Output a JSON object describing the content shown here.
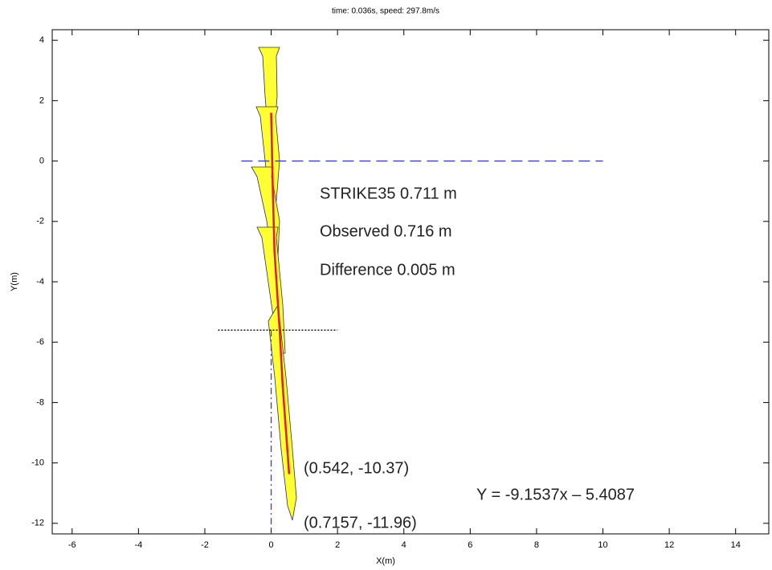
{
  "chart_data": {
    "type": "line",
    "title": "time:  0.036s,  speed:  297.8m/s",
    "x_label": "X(m)",
    "y_label": "Y(m)",
    "xlim": [
      -6.6,
      15
    ],
    "ylim": [
      -12.35,
      4.35
    ],
    "xticks": [
      -6,
      -4,
      -2,
      0,
      2,
      4,
      6,
      8,
      10,
      12,
      14
    ],
    "yticks": [
      -12,
      -10,
      -8,
      -6,
      -4,
      -2,
      0,
      2,
      4
    ],
    "lines": [
      {
        "x": [
          -0.9,
          10
        ],
        "y": [
          0,
          0
        ],
        "color": "#3b3bc8",
        "style": "dashed"
      },
      {
        "x": [
          -1.6,
          2
        ],
        "y": [
          -5.6,
          -5.6
        ],
        "color": "#000000",
        "style": "dotted"
      },
      {
        "x": [
          0,
          0
        ],
        "y": [
          -5.6,
          -12.35
        ],
        "color": "#3b3bc8",
        "style": "dashdot"
      },
      {
        "x": [
          0,
          0.05,
          0.1,
          0.25,
          0.35,
          0.45,
          0.542
        ],
        "y": [
          1.6,
          -1,
          -3,
          -5.5,
          -7.5,
          -9,
          -10.37
        ],
        "color": "#e02020",
        "style": "solid"
      }
    ],
    "annotations": [
      "STRIKE35 0.711 m",
      "Observed 0.716 m",
      "Difference 0.005 m",
      "(0.542, -10.37)",
      "(0.7157, -11.96)",
      "Y = -9.1537x – 5.4087"
    ]
  }
}
